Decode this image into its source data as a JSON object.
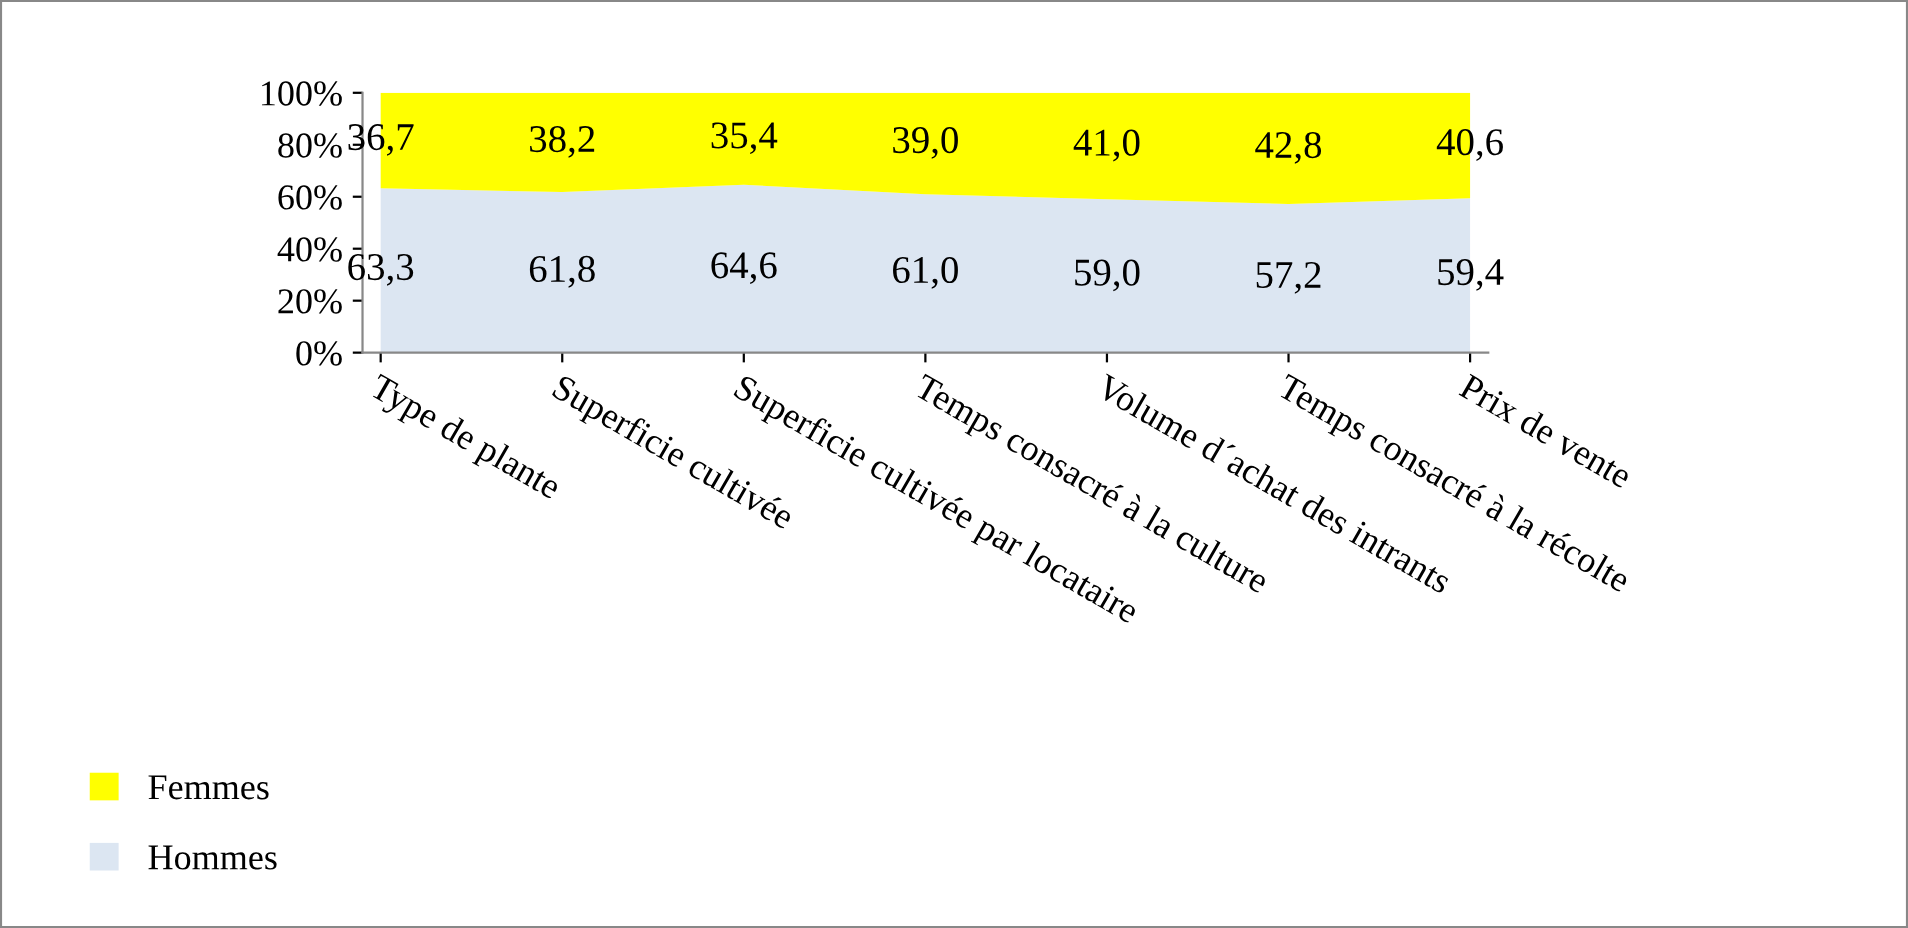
{
  "chart_data": {
    "type": "area",
    "stacked": true,
    "categories": [
      "Type de plante",
      "Superficie cultivée",
      "Superficie cultivée par locataire",
      "Temps consacré à la culture",
      "Volume d´achat des intrants",
      "Temps consacré à la récolte",
      "Prix de vente"
    ],
    "series": [
      {
        "name": "Hommes",
        "color": "#dce6f2",
        "values": [
          63.3,
          61.8,
          64.6,
          61.0,
          59.0,
          57.2,
          59.4
        ],
        "value_labels": [
          "63,3",
          "61,8",
          "64,6",
          "61,0",
          "59,0",
          "57,2",
          "59,4"
        ]
      },
      {
        "name": "Femmes",
        "color": "#ffff00",
        "values": [
          36.7,
          38.2,
          35.4,
          39.0,
          41.0,
          42.8,
          40.6
        ],
        "value_labels": [
          "36,7",
          "38,2",
          "35,4",
          "39,0",
          "41,0",
          "42,8",
          "40,6"
        ]
      }
    ],
    "ylim": [
      0,
      100
    ],
    "yticks": [
      {
        "value": 0,
        "label": "0%"
      },
      {
        "value": 20,
        "label": "20%"
      },
      {
        "value": 40,
        "label": "40%"
      },
      {
        "value": 60,
        "label": "60%"
      },
      {
        "value": 80,
        "label": "80%"
      },
      {
        "value": 100,
        "label": "100%"
      }
    ],
    "grid": false,
    "legend": "bottom left"
  }
}
